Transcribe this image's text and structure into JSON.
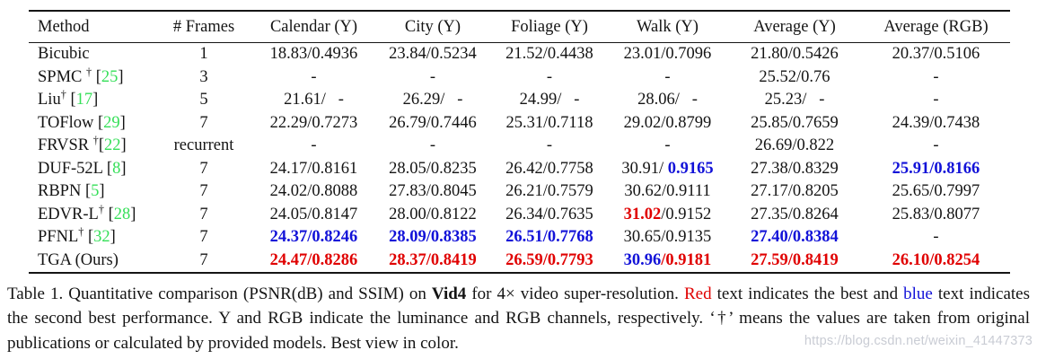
{
  "colors": {
    "best_red": "#e00000",
    "second_blue": "#1212d8",
    "citation_green": "#35df58",
    "watermark_gray": "#c9ccd4"
  },
  "table": {
    "headers": [
      "Method",
      "# Frames",
      "Calendar (Y)",
      "City (Y)",
      "Foliage (Y)",
      "Walk (Y)",
      "Average (Y)",
      "Average (RGB)"
    ],
    "rows": [
      {
        "method": [
          {
            "t": "Bicubic",
            "s": "n"
          }
        ],
        "frames": "1",
        "cells": [
          [
            {
              "t": "18.83/0.4936",
              "s": "n"
            }
          ],
          [
            {
              "t": "23.84/0.5234",
              "s": "n"
            }
          ],
          [
            {
              "t": "21.52/0.4438",
              "s": "n"
            }
          ],
          [
            {
              "t": "23.01/0.7096",
              "s": "n"
            }
          ],
          [
            {
              "t": "21.80/0.5426",
              "s": "n"
            }
          ],
          [
            {
              "t": "20.37/0.5106",
              "s": "n"
            }
          ]
        ]
      },
      {
        "method": [
          {
            "t": "SPMC ",
            "s": "n"
          },
          {
            "t": "†",
            "s": "sup"
          },
          {
            "t": " [",
            "s": "n"
          },
          {
            "t": "25",
            "s": "g"
          },
          {
            "t": "]",
            "s": "n"
          }
        ],
        "frames": "3",
        "cells": [
          [
            {
              "t": "-",
              "s": "n"
            }
          ],
          [
            {
              "t": "-",
              "s": "n"
            }
          ],
          [
            {
              "t": "-",
              "s": "n"
            }
          ],
          [
            {
              "t": "-",
              "s": "n"
            }
          ],
          [
            {
              "t": "25.52/0.76",
              "s": "n"
            }
          ],
          [
            {
              "t": "-",
              "s": "n"
            }
          ]
        ]
      },
      {
        "method": [
          {
            "t": "Liu",
            "s": "n"
          },
          {
            "t": "†",
            "s": "sup"
          },
          {
            "t": " [",
            "s": "n"
          },
          {
            "t": "17",
            "s": "g"
          },
          {
            "t": "]",
            "s": "n"
          }
        ],
        "frames": "5",
        "cells": [
          [
            {
              "t": "21.61/   -",
              "s": "n"
            }
          ],
          [
            {
              "t": "26.29/   -",
              "s": "n"
            }
          ],
          [
            {
              "t": "24.99/   -",
              "s": "n"
            }
          ],
          [
            {
              "t": "28.06/   -",
              "s": "n"
            }
          ],
          [
            {
              "t": "25.23/   -",
              "s": "n"
            }
          ],
          [
            {
              "t": "-",
              "s": "n"
            }
          ]
        ]
      },
      {
        "method": [
          {
            "t": "TOFlow [",
            "s": "n"
          },
          {
            "t": "29",
            "s": "g"
          },
          {
            "t": "]",
            "s": "n"
          }
        ],
        "frames": "7",
        "cells": [
          [
            {
              "t": "22.29/0.7273",
              "s": "n"
            }
          ],
          [
            {
              "t": "26.79/0.7446",
              "s": "n"
            }
          ],
          [
            {
              "t": "25.31/0.7118",
              "s": "n"
            }
          ],
          [
            {
              "t": "29.02/0.8799",
              "s": "n"
            }
          ],
          [
            {
              "t": "25.85/0.7659",
              "s": "n"
            }
          ],
          [
            {
              "t": "24.39/0.7438",
              "s": "n"
            }
          ]
        ]
      },
      {
        "method": [
          {
            "t": "FRVSR ",
            "s": "n"
          },
          {
            "t": "†",
            "s": "sup"
          },
          {
            "t": "[",
            "s": "n"
          },
          {
            "t": "22",
            "s": "g"
          },
          {
            "t": "]",
            "s": "n"
          }
        ],
        "frames": "recurrent",
        "cells": [
          [
            {
              "t": "-",
              "s": "n"
            }
          ],
          [
            {
              "t": "-",
              "s": "n"
            }
          ],
          [
            {
              "t": "-",
              "s": "n"
            }
          ],
          [
            {
              "t": "-",
              "s": "n"
            }
          ],
          [
            {
              "t": "26.69/0.822",
              "s": "n"
            }
          ],
          [
            {
              "t": "-",
              "s": "n"
            }
          ]
        ]
      },
      {
        "method": [
          {
            "t": "DUF-52L [",
            "s": "n"
          },
          {
            "t": "8",
            "s": "g"
          },
          {
            "t": "]",
            "s": "n"
          }
        ],
        "frames": "7",
        "cells": [
          [
            {
              "t": "24.17/0.8161",
              "s": "n"
            }
          ],
          [
            {
              "t": "28.05/0.8235",
              "s": "n"
            }
          ],
          [
            {
              "t": "26.42/0.7758",
              "s": "n"
            }
          ],
          [
            {
              "t": "30.91/ ",
              "s": "n"
            },
            {
              "t": "0.9165",
              "s": "b"
            }
          ],
          [
            {
              "t": "27.38/0.8329",
              "s": "n"
            }
          ],
          [
            {
              "t": "25.91/0.8166",
              "s": "b"
            }
          ]
        ]
      },
      {
        "method": [
          {
            "t": "RBPN [",
            "s": "n"
          },
          {
            "t": "5",
            "s": "g"
          },
          {
            "t": "]",
            "s": "n"
          }
        ],
        "frames": "7",
        "cells": [
          [
            {
              "t": "24.02/0.8088",
              "s": "n"
            }
          ],
          [
            {
              "t": "27.83/0.8045",
              "s": "n"
            }
          ],
          [
            {
              "t": "26.21/0.7579",
              "s": "n"
            }
          ],
          [
            {
              "t": "30.62/0.9111",
              "s": "n"
            }
          ],
          [
            {
              "t": "27.17/0.8205",
              "s": "n"
            }
          ],
          [
            {
              "t": "25.65/0.7997",
              "s": "n"
            }
          ]
        ]
      },
      {
        "method": [
          {
            "t": "EDVR-L",
            "s": "n"
          },
          {
            "t": "†",
            "s": "sup"
          },
          {
            "t": " [",
            "s": "n"
          },
          {
            "t": "28",
            "s": "g"
          },
          {
            "t": "]",
            "s": "n"
          }
        ],
        "frames": "7",
        "cells": [
          [
            {
              "t": "24.05/0.8147",
              "s": "n"
            }
          ],
          [
            {
              "t": "28.00/0.8122",
              "s": "n"
            }
          ],
          [
            {
              "t": "26.34/0.7635",
              "s": "n"
            }
          ],
          [
            {
              "t": "31.02",
              "s": "r"
            },
            {
              "t": "/0.9152",
              "s": "n"
            }
          ],
          [
            {
              "t": "27.35/0.8264",
              "s": "n"
            }
          ],
          [
            {
              "t": "25.83/0.8077",
              "s": "n"
            }
          ]
        ]
      },
      {
        "method": [
          {
            "t": "PFNL",
            "s": "n"
          },
          {
            "t": "†",
            "s": "sup"
          },
          {
            "t": " [",
            "s": "n"
          },
          {
            "t": "32",
            "s": "g"
          },
          {
            "t": "]",
            "s": "n"
          }
        ],
        "frames": "7",
        "cells": [
          [
            {
              "t": "24.37/0.8246",
              "s": "b"
            }
          ],
          [
            {
              "t": "28.09/0.8385",
              "s": "b"
            }
          ],
          [
            {
              "t": "26.51/0.7768",
              "s": "b"
            }
          ],
          [
            {
              "t": "30.65/0.9135",
              "s": "n"
            }
          ],
          [
            {
              "t": "27.40/0.8384",
              "s": "b"
            }
          ],
          [
            {
              "t": "-",
              "s": "n"
            }
          ]
        ]
      },
      {
        "method": [
          {
            "t": "TGA (Ours)",
            "s": "n"
          }
        ],
        "frames": "7",
        "cells": [
          [
            {
              "t": "24.47/0.8286",
              "s": "r"
            }
          ],
          [
            {
              "t": "28.37/0.8419",
              "s": "r"
            }
          ],
          [
            {
              "t": "26.59/0.7793",
              "s": "r"
            }
          ],
          [
            {
              "t": "30.96",
              "s": "b"
            },
            {
              "t": "/0.9181",
              "s": "r"
            }
          ],
          [
            {
              "t": "27.59/0.8419",
              "s": "r"
            }
          ],
          [
            {
              "t": "26.10/0.8254",
              "s": "r"
            }
          ]
        ]
      }
    ]
  },
  "caption": {
    "segments": [
      {
        "t": "Table 1. Quantitative comparison (PSNR(dB) and SSIM) on ",
        "s": "n"
      },
      {
        "t": "Vid4",
        "s": "bold"
      },
      {
        "t": " for 4× video super-resolution. ",
        "s": "n"
      },
      {
        "t": "Red",
        "s": "cr"
      },
      {
        "t": " text indicates the best and ",
        "s": "n"
      },
      {
        "t": "blue",
        "s": "cb"
      },
      {
        "t": " text indicates the second best performance. Y and RGB indicate the luminance and RGB channels, respectively. ‘†’ means the values are taken from original publications or calculated by provided models. Best view in color.",
        "s": "n"
      }
    ]
  },
  "watermark": "https://blog.csdn.net/weixin_41447373"
}
